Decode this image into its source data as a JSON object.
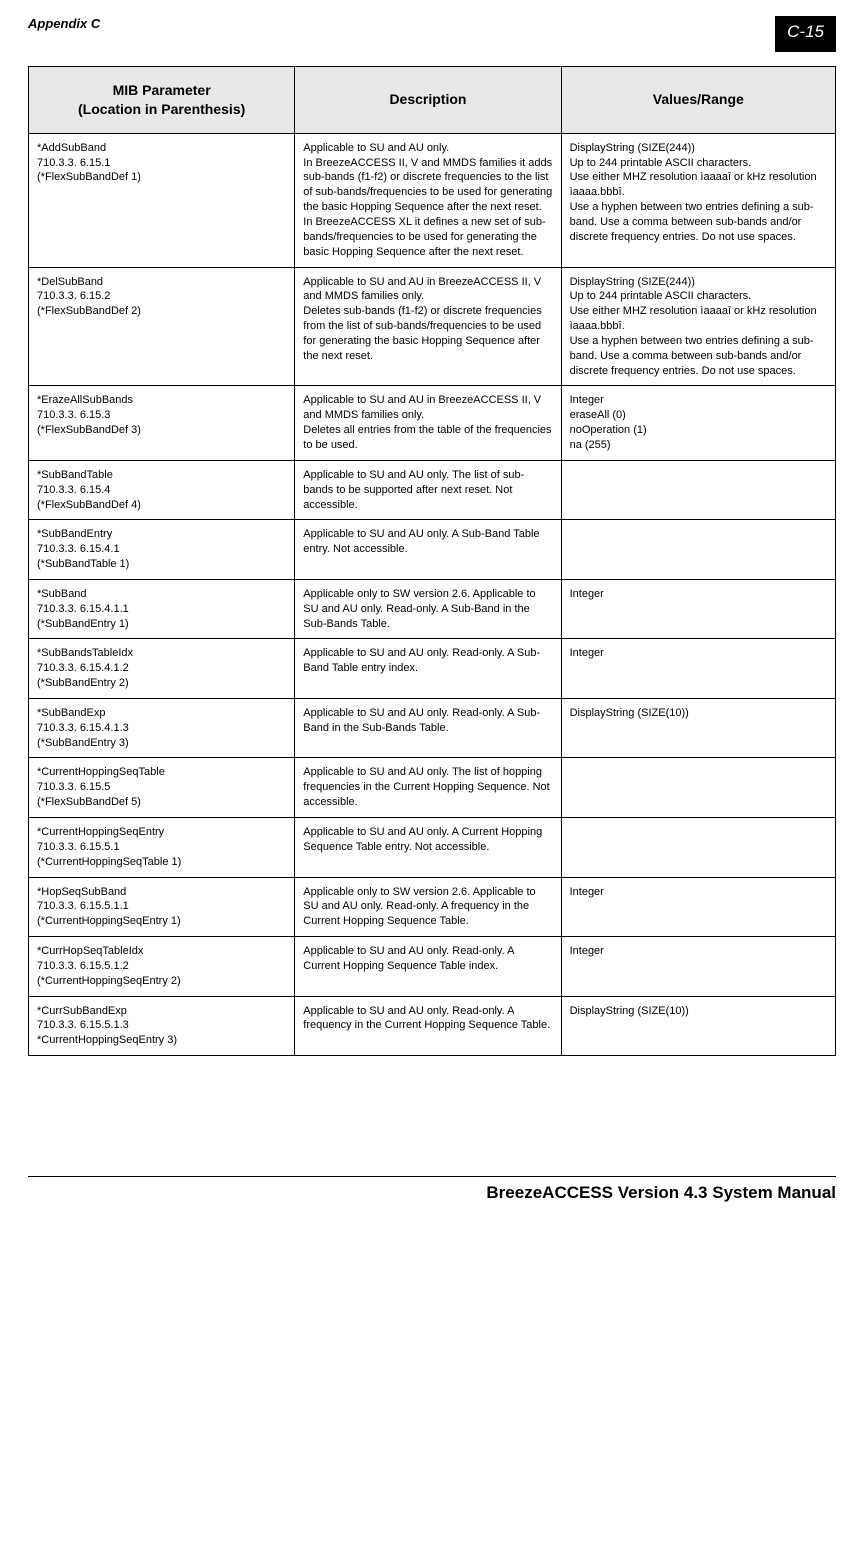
{
  "header": {
    "appendix": "Appendix C",
    "page_number": "C-15"
  },
  "table": {
    "columns": [
      "MIB Parameter\n(Location in Parenthesis)",
      "Description",
      "Values/Range"
    ],
    "rows": [
      {
        "name": "*AddSubBand",
        "oid": "710.3.3. 6.15.1",
        "loc": "(*FlexSubBandDef 1)",
        "desc": "Applicable to SU and AU only.\nIn BreezeACCESS II, V and MMDS families it adds sub-bands (f1-f2) or discrete frequencies to the list of sub-bands/frequencies to be used for generating the basic Hopping Sequence after the next reset.\nIn BreezeACCESS XL it defines a new set of sub-bands/frequencies to be used for generating the basic Hopping Sequence after the next reset.",
        "range": "DisplayString (SIZE(244))\nUp to 244 printable ASCII characters.\nUse either MHZ resolution ìaaaaî or kHz resolution ìaaaa.bbbî.\nUse a hyphen between two entries defining a sub-band. Use a comma between sub-bands and/or discrete frequency entries. Do not use spaces."
      },
      {
        "name": "*DelSubBand",
        "oid": "710.3.3. 6.15.2",
        "loc": "(*FlexSubBandDef 2)",
        "desc": "Applicable to SU and AU in BreezeACCESS II, V and MMDS families only.\nDeletes sub-bands (f1-f2) or discrete frequencies from the list of sub-bands/frequencies to be used for generating the basic Hopping Sequence after the next reset.",
        "range": "DisplayString (SIZE(244))\nUp to 244 printable ASCII characters.\nUse either MHZ resolution ìaaaaî or kHz resolution ìaaaa.bbbî.\nUse a hyphen between two entries defining a sub-band. Use a comma between sub-bands and/or discrete frequency entries. Do not use spaces."
      },
      {
        "name": "*ErazeAllSubBands",
        "oid": "710.3.3. 6.15.3",
        "loc": "(*FlexSubBandDef 3)",
        "desc": "Applicable to SU and AU in BreezeACCESS II, V and MMDS families only.\nDeletes all entries from the table of the frequencies to be used.",
        "range": "Integer\neraseAll (0)\nnoOperation (1)\nna (255)"
      },
      {
        "name": "*SubBandTable",
        "oid": "710.3.3. 6.15.4",
        "loc": "(*FlexSubBandDef 4)",
        "desc": "Applicable to SU and AU only. The list of sub-bands to be supported after next reset. Not accessible.",
        "range": ""
      },
      {
        "name": "*SubBandEntry",
        "oid": "710.3.3. 6.15.4.1",
        "loc": "(*SubBandTable 1)",
        "desc": "Applicable to SU and AU only. A Sub-Band Table entry. Not accessible.",
        "range": ""
      },
      {
        "name": "*SubBand",
        "oid": "710.3.3. 6.15.4.1.1",
        "loc": "(*SubBandEntry 1)",
        "desc": "Applicable only to SW version 2.6. Applicable to SU and AU only. Read-only. A Sub-Band in the Sub-Bands Table.",
        "range": "Integer"
      },
      {
        "name": "*SubBandsTableIdx",
        "oid": "710.3.3. 6.15.4.1.2",
        "loc": "(*SubBandEntry 2)",
        "desc": "Applicable to SU and AU only. Read-only. A Sub-Band Table entry index.",
        "range": "Integer"
      },
      {
        "name": "*SubBandExp",
        "oid": "710.3.3. 6.15.4.1.3",
        "loc": "(*SubBandEntry 3)",
        "desc": "Applicable to SU and AU only. Read-only. A Sub-Band in the Sub-Bands Table.",
        "range": "DisplayString (SIZE(10))"
      },
      {
        "name": "*CurrentHoppingSeqTable",
        "oid": "710.3.3. 6.15.5",
        "loc": "(*FlexSubBandDef 5)",
        "desc": "Applicable to SU and AU only. The list of hopping frequencies in the Current Hopping Sequence. Not accessible.",
        "range": ""
      },
      {
        "name": "*CurrentHoppingSeqEntry",
        "oid": "710.3.3. 6.15.5.1",
        "loc": "(*CurrentHoppingSeqTable 1)",
        "desc": "Applicable to SU and AU only. A Current Hopping Sequence Table entry. Not accessible.",
        "range": ""
      },
      {
        "name": "*HopSeqSubBand",
        "oid": "710.3.3. 6.15.5.1.1",
        "loc": "(*CurrentHoppingSeqEntry 1)",
        "desc": "Applicable only to SW version 2.6. Applicable to SU and AU only. Read-only. A frequency in the Current Hopping Sequence Table.",
        "range": "Integer"
      },
      {
        "name": "*CurrHopSeqTableIdx",
        "oid": "710.3.3. 6.15.5.1.2",
        "loc": "(*CurrentHoppingSeqEntry 2)",
        "desc": "Applicable to SU and AU only. Read-only. A Current Hopping Sequence Table index.",
        "range": "Integer"
      },
      {
        "name": "*CurrSubBandExp",
        "oid": "710.3.3. 6.15.5.1.3",
        "loc": "*CurrentHoppingSeqEntry 3)",
        "desc": "Applicable to SU and AU only. Read-only. A frequency in the Current Hopping Sequence Table.",
        "range": "DisplayString (SIZE(10))"
      }
    ]
  },
  "footer": {
    "manual_title": "BreezeACCESS Version 4.3 System Manual"
  }
}
